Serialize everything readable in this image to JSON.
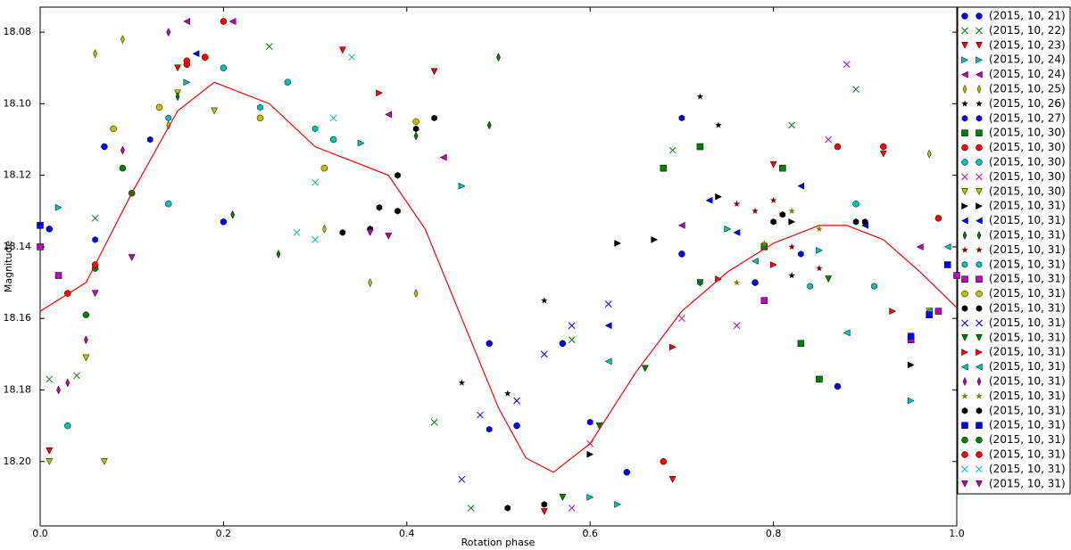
{
  "chart_data": {
    "type": "scatter",
    "xlabel": "Rotation phase",
    "ylabel": "Magnitude",
    "xlim": [
      0,
      1
    ],
    "ylim": [
      18.073,
      18.218
    ],
    "y_inverted": true,
    "legend": "right",
    "xticks": [
      {
        "value": 0,
        "label": "0.0"
      },
      0.2,
      0.4,
      0.6,
      0.8,
      {
        "value": 1,
        "label": "1.0"
      }
    ],
    "yticks": [
      18.08,
      {
        "value": 18.1,
        "label": "18.10"
      },
      18.12,
      18.14,
      18.16,
      18.18,
      {
        "value": 18.2,
        "label": "18.20"
      }
    ],
    "fit": {
      "color": "#ff0000",
      "x": [
        0,
        0.05,
        0.1,
        0.15,
        0.19,
        0.25,
        0.3,
        0.35,
        0.38,
        0.42,
        0.46,
        0.5,
        0.53,
        0.56,
        0.6,
        0.65,
        0.7,
        0.75,
        0.8,
        0.85,
        0.88,
        0.92,
        0.96,
        1.0
      ],
      "y": [
        18.158,
        18.15,
        18.125,
        18.102,
        18.094,
        18.1,
        18.112,
        18.117,
        18.12,
        18.135,
        18.16,
        18.185,
        18.199,
        18.203,
        18.195,
        18.175,
        18.158,
        18.147,
        18.139,
        18.134,
        18.134,
        18.138,
        18.147,
        18.157
      ]
    },
    "series": [
      {
        "name": "(2015, 10, 21)",
        "color": "#0000ff",
        "marker": "o",
        "x": [
          0.01,
          0.07,
          0.2,
          0.49,
          0.52,
          0.57,
          0.64,
          0.7,
          0.78,
          0.87
        ],
        "y": [
          18.135,
          18.112,
          18.133,
          18.167,
          18.19,
          18.167,
          18.203,
          18.142,
          18.15,
          18.179
        ]
      },
      {
        "name": "(2015, 10, 22)",
        "color": "#008000",
        "marker": "x",
        "x": [
          0.01,
          0.04,
          0.06,
          0.25,
          0.43,
          0.47,
          0.58,
          0.69,
          0.82,
          0.89
        ],
        "y": [
          18.177,
          18.176,
          18.132,
          18.084,
          18.189,
          18.213,
          18.166,
          18.113,
          18.106,
          18.096
        ]
      },
      {
        "name": "(2015, 10, 23)",
        "color": "#ff0000",
        "marker": "v",
        "x": [
          0.01,
          0.15,
          0.33,
          0.43,
          0.55,
          0.69,
          0.8,
          0.92
        ],
        "y": [
          18.197,
          18.09,
          18.085,
          18.091,
          18.214,
          18.205,
          18.117,
          18.114
        ]
      },
      {
        "name": "(2015, 10, 24)",
        "color": "#00bfbf",
        "marker": ">",
        "x": [
          0.02,
          0.16,
          0.35,
          0.46,
          0.6,
          0.63,
          0.75,
          0.85,
          0.95
        ],
        "y": [
          18.129,
          18.094,
          18.111,
          18.123,
          18.21,
          18.212,
          18.135,
          18.141,
          18.183
        ]
      },
      {
        "name": "(2015, 10, 24)",
        "color": "#bf00bf",
        "marker": "<",
        "x": [
          0.16,
          0.21,
          0.38,
          0.44,
          0.7,
          0.9,
          0.96
        ],
        "y": [
          18.077,
          18.077,
          18.103,
          18.115,
          18.134,
          18.134,
          18.14
        ]
      },
      {
        "name": "(2015, 10, 25)",
        "color": "#bfbf00",
        "marker": "d",
        "x": [
          0.06,
          0.09,
          0.14,
          0.31,
          0.36,
          0.41,
          0.97
        ],
        "y": [
          18.086,
          18.082,
          18.106,
          18.135,
          18.15,
          18.153,
          18.114
        ]
      },
      {
        "name": "(2015, 10, 26)",
        "color": "#000000",
        "marker": "*",
        "x": [
          0.46,
          0.51,
          0.55,
          0.72,
          0.74,
          0.82
        ],
        "y": [
          18.178,
          18.181,
          18.155,
          18.098,
          18.106,
          18.148
        ]
      },
      {
        "name": "(2015, 10, 27)",
        "color": "#0000ff",
        "marker": "h",
        "x": [
          0.06,
          0.12,
          0.49,
          0.6,
          0.7,
          0.83
        ],
        "y": [
          18.138,
          18.11,
          18.191,
          18.189,
          18.104,
          18.142
        ]
      },
      {
        "name": "(2015, 10, 30)",
        "color": "#008000",
        "marker": "s",
        "x": [
          0.72,
          0.68,
          0.79,
          0.81,
          0.83,
          0.85
        ],
        "y": [
          18.112,
          18.118,
          18.14,
          18.118,
          18.167,
          18.177
        ]
      },
      {
        "name": "(2015, 10, 30)",
        "color": "#ff0000",
        "marker": "o",
        "x": [
          0.16,
          0.18,
          0.2,
          0.68,
          0.87,
          0.92,
          0.98
        ],
        "y": [
          18.089,
          18.087,
          18.077,
          18.2,
          18.112,
          18.112,
          18.132
        ]
      },
      {
        "name": "(2015, 10, 30)",
        "color": "#00bfbf",
        "marker": "o",
        "x": [
          0.03,
          0.14,
          0.2,
          0.27,
          0.32,
          0.89
        ],
        "y": [
          18.19,
          18.128,
          18.09,
          18.094,
          18.11,
          18.128
        ]
      },
      {
        "name": "(2015, 10, 30)",
        "color": "#bf00bf",
        "marker": "x",
        "x": [
          0.58,
          0.6,
          0.7,
          0.76,
          0.86,
          0.88
        ],
        "y": [
          18.213,
          18.195,
          18.16,
          18.162,
          18.11,
          18.089
        ]
      },
      {
        "name": "(2015, 10, 30)",
        "color": "#bfbf00",
        "marker": "v",
        "x": [
          0.01,
          0.07,
          0.05,
          0.15,
          0.19,
          0.97
        ],
        "y": [
          18.2,
          18.2,
          18.171,
          18.097,
          18.102,
          18.158
        ]
      },
      {
        "name": "(2015, 10, 31)",
        "color": "#000000",
        "marker": ">",
        "x": [
          0.6,
          0.63,
          0.67,
          0.74,
          0.82,
          0.95
        ],
        "y": [
          18.198,
          18.139,
          18.138,
          18.126,
          18.133,
          18.173
        ]
      },
      {
        "name": "(2015, 10, 31)",
        "color": "#0000ff",
        "marker": "<",
        "x": [
          0.17,
          0.62,
          0.73,
          0.76,
          0.83,
          0.9
        ],
        "y": [
          18.086,
          18.162,
          18.127,
          18.136,
          18.123,
          18.134
        ]
      },
      {
        "name": "(2015, 10, 31)",
        "color": "#008000",
        "marker": "d",
        "x": [
          0.15,
          0.21,
          0.26,
          0.41,
          0.49,
          0.5
        ],
        "y": [
          18.098,
          18.131,
          18.142,
          18.109,
          18.106,
          18.087
        ]
      },
      {
        "name": "(2015, 10, 31)",
        "color": "#800000",
        "marker": "*",
        "x": [
          0.76,
          0.78,
          0.8,
          0.82,
          0.85
        ],
        "y": [
          18.128,
          18.13,
          18.127,
          18.14,
          18.146
        ]
      },
      {
        "name": "(2015, 10, 31)",
        "color": "#00bfbf",
        "marker": "h",
        "x": [
          0.14,
          0.24,
          0.3,
          0.72,
          0.84,
          0.91
        ],
        "y": [
          18.104,
          18.101,
          18.107,
          18.15,
          18.151,
          18.151
        ]
      },
      {
        "name": "(2015, 10, 31)",
        "color": "#bf00bf",
        "marker": "s",
        "x": [
          0.0,
          0.02,
          0.79,
          0.95,
          0.98,
          1.0
        ],
        "y": [
          18.14,
          18.148,
          18.155,
          18.166,
          18.158,
          18.148
        ]
      },
      {
        "name": "(2015, 10, 31)",
        "color": "#bfbf00",
        "marker": "o",
        "x": [
          0.08,
          0.13,
          0.24,
          0.31,
          0.41
        ],
        "y": [
          18.107,
          18.101,
          18.104,
          18.118,
          18.105
        ]
      },
      {
        "name": "(2015, 10, 31)",
        "color": "#000000",
        "marker": "h",
        "x": [
          0.33,
          0.37,
          0.39,
          0.41,
          0.43,
          0.8,
          0.89
        ],
        "y": [
          18.136,
          18.129,
          18.12,
          18.107,
          18.104,
          18.133,
          18.133
        ]
      },
      {
        "name": "(2015, 10, 31)",
        "color": "#0000ff",
        "marker": "x",
        "x": [
          0.46,
          0.48,
          0.52,
          0.55,
          0.58,
          0.62
        ],
        "y": [
          18.205,
          18.187,
          18.183,
          18.17,
          18.162,
          18.156
        ]
      },
      {
        "name": "(2015, 10, 31)",
        "color": "#008000",
        "marker": "v",
        "x": [
          0.57,
          0.61,
          0.66,
          0.72,
          0.86
        ],
        "y": [
          18.21,
          18.19,
          18.174,
          18.15,
          18.149
        ]
      },
      {
        "name": "(2015, 10, 31)",
        "color": "#ff0000",
        "marker": ">",
        "x": [
          0.37,
          0.69,
          0.74,
          0.8,
          0.93
        ],
        "y": [
          18.097,
          18.168,
          18.149,
          18.145,
          18.158
        ]
      },
      {
        "name": "(2015, 10, 31)",
        "color": "#00bfbf",
        "marker": "<",
        "x": [
          0.62,
          0.78,
          0.88,
          0.97,
          0.99
        ],
        "y": [
          18.172,
          18.144,
          18.164,
          18.158,
          18.14
        ]
      },
      {
        "name": "(2015, 10, 31)",
        "color": "#bf00bf",
        "marker": "d",
        "x": [
          0.02,
          0.03,
          0.05,
          0.09,
          0.14
        ],
        "y": [
          18.18,
          18.178,
          18.166,
          18.113,
          18.08
        ]
      },
      {
        "name": "(2015, 10, 31)",
        "color": "#808000",
        "marker": "*",
        "x": [
          0.76,
          0.79,
          0.82,
          0.85
        ],
        "y": [
          18.15,
          18.139,
          18.13,
          18.135
        ]
      },
      {
        "name": "(2015, 10, 31)",
        "color": "#000000",
        "marker": "h",
        "x": [
          0.36,
          0.39,
          0.51,
          0.55,
          0.81,
          0.9
        ],
        "y": [
          18.135,
          18.13,
          18.213,
          18.212,
          18.131,
          18.133
        ]
      },
      {
        "name": "(2015, 10, 31)",
        "color": "#0000ff",
        "marker": "s",
        "x": [
          0.0,
          0.95,
          0.97,
          0.99
        ],
        "y": [
          18.134,
          18.165,
          18.159,
          18.145
        ]
      },
      {
        "name": "(2015, 10, 31)",
        "color": "#008000",
        "marker": "o",
        "x": [
          0.05,
          0.06,
          0.1,
          0.09
        ],
        "y": [
          18.159,
          18.146,
          18.125,
          18.118
        ]
      },
      {
        "name": "(2015, 10, 31)",
        "color": "#ff0000",
        "marker": "o",
        "x": [
          0.03,
          0.06,
          0.16,
          0.18
        ],
        "y": [
          18.153,
          18.145,
          18.088,
          18.087
        ]
      },
      {
        "name": "(2015, 10, 31)",
        "color": "#00bfbf",
        "marker": "x",
        "x": [
          0.3,
          0.32,
          0.34,
          0.28,
          0.3
        ],
        "y": [
          18.122,
          18.104,
          18.087,
          18.136,
          18.138
        ]
      },
      {
        "name": "(2015, 10, 31)",
        "color": "#bf00bf",
        "marker": "v",
        "x": [
          0.06,
          0.1,
          0.36,
          0.38
        ],
        "y": [
          18.153,
          18.143,
          18.136,
          18.137
        ]
      }
    ]
  }
}
